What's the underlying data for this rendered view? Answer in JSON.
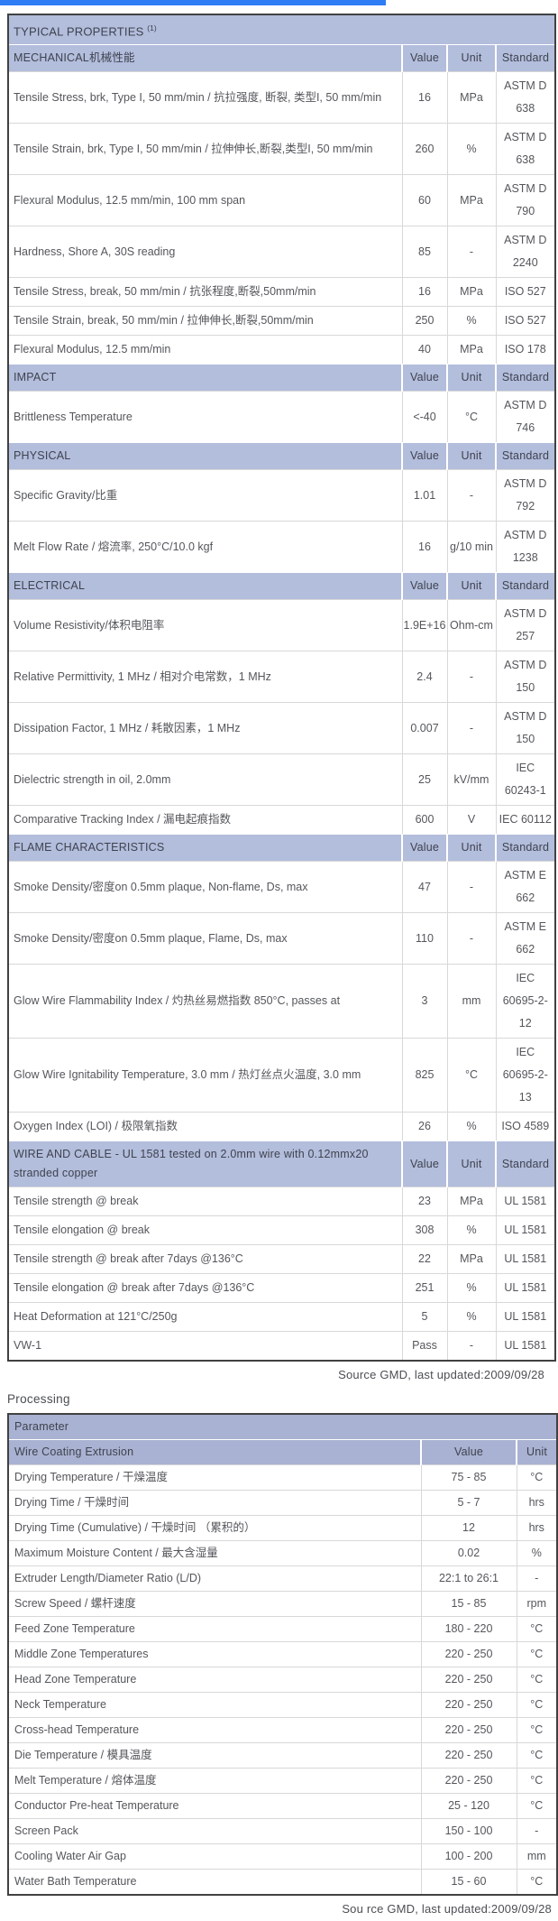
{
  "colors": {
    "accent_blue": "#2e7df5",
    "section_header_bg": "#b3bddc",
    "processing_header_bg": "#a9b2d2"
  },
  "typical_properties": {
    "title": "TYPICAL PROPERTIES",
    "title_sup": "(1)",
    "value_col": "Value",
    "unit_col": "Unit",
    "standard_col": "Standard",
    "sections": [
      {
        "header": "MECHANICAL机械性能",
        "rows": [
          [
            "Tensile Stress, brk, Type I, 50 mm/min / 抗拉强度, 断裂, 类型I, 50 mm/min",
            "16",
            "MPa",
            "ASTM D 638"
          ],
          [
            "Tensile Strain, brk, Type I, 50 mm/min / 拉伸伸长,断裂,类型I, 50 mm/min",
            "260",
            "%",
            "ASTM D 638"
          ],
          [
            "Flexural Modulus, 12.5 mm/min, 100 mm span",
            "60",
            "MPa",
            "ASTM D 790"
          ],
          [
            "Hardness, Shore A, 30S reading",
            "85",
            "-",
            "ASTM D 2240"
          ],
          [
            "Tensile Stress, break, 50 mm/min / 抗张程度,断裂,50mm/min",
            "16",
            "MPa",
            "ISO 527"
          ],
          [
            "Tensile Strain, break, 50 mm/min / 拉伸伸长,断裂,50mm/min",
            "250",
            "%",
            "ISO 527"
          ],
          [
            "Flexural Modulus, 12.5 mm/min",
            "40",
            "MPa",
            "ISO 178"
          ]
        ]
      },
      {
        "header": "IMPACT",
        "rows": [
          [
            "Brittleness Temperature",
            "<-40",
            "°C",
            "ASTM D 746"
          ]
        ]
      },
      {
        "header": "PHYSICAL",
        "rows": [
          [
            "Specific Gravity/比重",
            "1.01",
            "-",
            "ASTM D 792"
          ],
          [
            "Melt Flow Rate / 熔流率, 250°C/10.0 kgf",
            "16",
            "g/10 min",
            "ASTM D 1238"
          ]
        ]
      },
      {
        "header": "ELECTRICAL",
        "rows": [
          [
            "Volume Resistivity/体积电阻率",
            "1.9E+16",
            "Ohm-cm",
            "ASTM D 257"
          ],
          [
            "Relative Permittivity, 1 MHz / 相对介电常数，1 MHz",
            "2.4",
            "-",
            "ASTM D 150"
          ],
          [
            "Dissipation Factor, 1 MHz / 耗散因素，1 MHz",
            "0.007",
            "-",
            "ASTM D 150"
          ],
          [
            "Dielectric strength in oil, 2.0mm",
            "25",
            "kV/mm",
            "IEC 60243-1"
          ],
          [
            "Comparative Tracking Index / 漏电起痕指数",
            "600",
            "V",
            "IEC 60112"
          ]
        ]
      },
      {
        "header": "FLAME CHARACTERISTICS",
        "rows": [
          [
            "Smoke Density/密度on 0.5mm plaque, Non-flame, Ds, max",
            "47",
            "-",
            "ASTM E 662"
          ],
          [
            "Smoke Density/密度on 0.5mm plaque, Flame, Ds, max",
            "110",
            "-",
            "ASTM E 662"
          ],
          [
            "Glow Wire Flammability Index / 灼热丝易燃指数 850°C, passes at",
            "3",
            "mm",
            "IEC 60695-2-12"
          ],
          [
            "Glow Wire Ignitability Temperature, 3.0 mm / 热灯丝点火温度, 3.0 mm",
            "825",
            "°C",
            "IEC 60695-2-13"
          ],
          [
            "Oxygen Index (LOI) / 极限氧指数",
            "26",
            "%",
            "ISO 4589"
          ]
        ]
      },
      {
        "header": "WIRE AND CABLE - UL 1581 tested on 2.0mm wire with 0.12mmx20 stranded copper",
        "rows": [
          [
            "Tensile strength @ break",
            "23",
            "MPa",
            "UL 1581"
          ],
          [
            "Tensile elongation @ break",
            "308",
            "%",
            "UL 1581"
          ],
          [
            "Tensile strength @ break after 7days @136°C",
            "22",
            "MPa",
            "UL 1581"
          ],
          [
            "Tensile elongation @ break after 7days @136°C",
            "251",
            "%",
            "UL 1581"
          ],
          [
            "Heat Deformation at 121°C/250g",
            "5",
            "%",
            "UL 1581"
          ],
          [
            "VW-1",
            "Pass",
            "-",
            "UL 1581"
          ]
        ]
      }
    ],
    "source_note": "Source GMD, last updated:2009/09/28"
  },
  "processing": {
    "heading": "Processing",
    "param_header": "Parameter",
    "subheader": "Wire Coating Extrusion",
    "value_col": "Value",
    "unit_col": "Unit",
    "rows": [
      [
        "Drying Temperature / 干燥温度",
        "75 - 85",
        "°C"
      ],
      [
        "Drying Time / 干燥时间",
        "5 - 7",
        "hrs"
      ],
      [
        "Drying Time (Cumulative) / 干燥时间 （累积的）",
        "12",
        "hrs"
      ],
      [
        "Maximum Moisture Content / 最大含湿量",
        "0.02",
        "%"
      ],
      [
        "Extruder Length/Diameter Ratio (L/D)",
        "22:1 to 26:1",
        "-"
      ],
      [
        "Screw Speed / 螺杆速度",
        "15 - 85",
        "rpm"
      ],
      [
        "Feed Zone Temperature",
        "180 - 220",
        "°C"
      ],
      [
        "Middle Zone Temperatures",
        "220 - 250",
        "°C"
      ],
      [
        "Head Zone Temperature",
        "220 - 250",
        "°C"
      ],
      [
        "Neck Temperature",
        "220 - 250",
        "°C"
      ],
      [
        "Cross-head Temperature",
        "220 - 250",
        "°C"
      ],
      [
        "Die Temperature / 模具温度",
        "220 - 250",
        "°C"
      ],
      [
        "Melt Temperature / 熔体温度",
        "220 - 250",
        "°C"
      ],
      [
        "Conductor Pre-heat Temperature",
        "25 - 120",
        "°C"
      ],
      [
        "Screen Pack",
        "150 - 100",
        "-"
      ],
      [
        "Cooling Water Air Gap",
        "100 - 200",
        "mm"
      ],
      [
        "Water Bath Temperature",
        "15 - 60",
        "°C"
      ]
    ],
    "source_note": "Sou rce GMD, last updated:2009/09/28"
  }
}
